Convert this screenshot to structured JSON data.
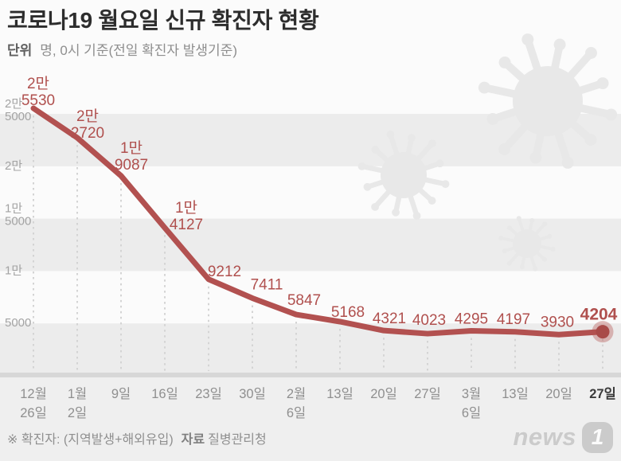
{
  "header": {
    "title": "코로나19 월요일 신규 확진자 현황",
    "unit_bold": "단위",
    "unit_rest": "명, 0시 기준(전일 확진자 발생기준)"
  },
  "chart_data": {
    "type": "line",
    "title": "코로나19 월요일 신규 확진자 현황",
    "unit": "명, 0시 기준(전일 확진자 발생기준)",
    "x_labels": [
      [
        "12월",
        "26일"
      ],
      [
        "1월",
        "2일"
      ],
      [
        "9일"
      ],
      [
        "16일"
      ],
      [
        "23일"
      ],
      [
        "30일"
      ],
      [
        "2월",
        "6일"
      ],
      [
        "13일"
      ],
      [
        "20일"
      ],
      [
        "27일"
      ],
      [
        "3월",
        "6일"
      ],
      [
        "13일"
      ],
      [
        "20일"
      ],
      [
        "27일"
      ]
    ],
    "values": [
      25530,
      22720,
      19087,
      14127,
      9212,
      7411,
      5847,
      5168,
      4321,
      4023,
      4295,
      4197,
      3930,
      4204
    ],
    "point_labels": [
      [
        "2만",
        "5530"
      ],
      [
        "2만",
        "2720"
      ],
      [
        "1만",
        "9087"
      ],
      [
        "1만",
        "4127"
      ],
      [
        "9212"
      ],
      [
        "7411"
      ],
      [
        "5847"
      ],
      [
        "5168"
      ],
      [
        "4321"
      ],
      [
        "4023"
      ],
      [
        "4295"
      ],
      [
        "4197"
      ],
      [
        "3930"
      ],
      [
        "4204"
      ]
    ],
    "y_ticks": [
      {
        "value": 25000,
        "lines": [
          "2만",
          "5000"
        ]
      },
      {
        "value": 20000,
        "lines": [
          "2만"
        ]
      },
      {
        "value": 15000,
        "lines": [
          "1만",
          "5000"
        ]
      },
      {
        "value": 10000,
        "lines": [
          "1만"
        ]
      },
      {
        "value": 5000,
        "lines": [
          "5000"
        ]
      }
    ],
    "ylim": [
      0,
      25000
    ],
    "emphasized_index": 13,
    "grid": "drop-lines from each point to x-axis, horizontal gray bands every 5000",
    "legend": "none"
  },
  "footer": {
    "note_prefix": "※ 확진자: (지역발생+해외유입)",
    "source_label": "자료",
    "source_value": "질병관리청",
    "logo_text": "news",
    "logo_badge": "1"
  },
  "colors": {
    "line": "#b25150",
    "point_label": "#b0504e",
    "marker_fill": "#a84a48",
    "marker_halo": "rgba(178,81,80,0.38)",
    "stripe": "#ececec",
    "axis_bar": "#d7d7d7",
    "bottom_bg": "#efefef",
    "grid_dash": "#d4d4d4",
    "y_tick": "#a3a3a3",
    "x_tick": "#8f8f8f",
    "x_tick_emphasis": "#3b3b3b",
    "virus_watermark": "#e8e8e8",
    "background": "#fbfbfb",
    "title": "#2d2d2d",
    "subtitle": "#8e8e8e",
    "footer_text": "#8f8f8f",
    "logo": "#cbcbcb"
  }
}
